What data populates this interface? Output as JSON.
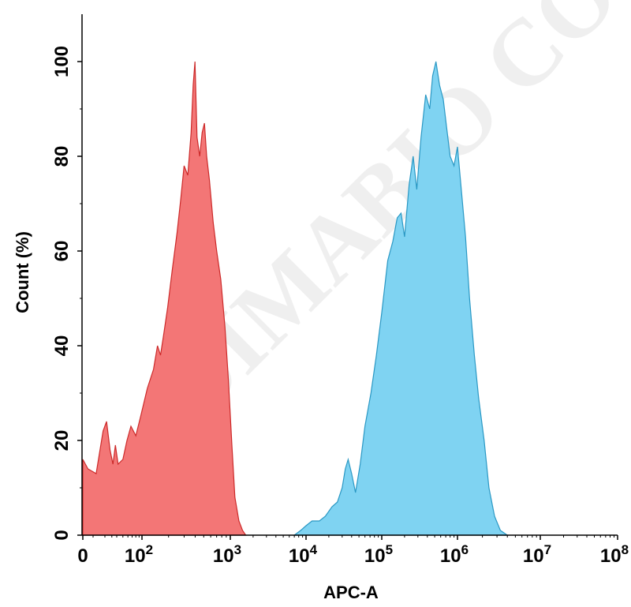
{
  "watermark": "DIMABIO CO",
  "chart_data": {
    "type": "area",
    "xlabel": "APC-A",
    "ylabel": "Count (%)",
    "x_scale": "biexponential",
    "xlim": [
      0,
      100000000
    ],
    "ylim": [
      0,
      110
    ],
    "x_ticks": [
      {
        "value": 0,
        "base": "0",
        "exp": ""
      },
      {
        "value": 100,
        "base": "10",
        "exp": "2"
      },
      {
        "value": 1000,
        "base": "10",
        "exp": "3"
      },
      {
        "value": 10000,
        "base": "10",
        "exp": "4"
      },
      {
        "value": 100000,
        "base": "10",
        "exp": "5"
      },
      {
        "value": 1000000,
        "base": "10",
        "exp": "6"
      },
      {
        "value": 10000000,
        "base": "10",
        "exp": "7"
      },
      {
        "value": 100000000,
        "base": "10",
        "exp": "8"
      }
    ],
    "y_ticks": [
      0,
      20,
      40,
      60,
      80,
      100
    ],
    "grid": false,
    "legend": "none",
    "series": [
      {
        "color": "#f37676",
        "stroke": "#cc2a2a",
        "points": [
          [
            0,
            16
          ],
          [
            5,
            14
          ],
          [
            12,
            13
          ],
          [
            18,
            22
          ],
          [
            22,
            24
          ],
          [
            27,
            18
          ],
          [
            32,
            15
          ],
          [
            37,
            19
          ],
          [
            42,
            15
          ],
          [
            50,
            16
          ],
          [
            58,
            20
          ],
          [
            67,
            23
          ],
          [
            80,
            21
          ],
          [
            95,
            25
          ],
          [
            115,
            31
          ],
          [
            135,
            35
          ],
          [
            150,
            40
          ],
          [
            162,
            38
          ],
          [
            175,
            42
          ],
          [
            195,
            48
          ],
          [
            220,
            56
          ],
          [
            250,
            64
          ],
          [
            275,
            71
          ],
          [
            300,
            78
          ],
          [
            330,
            76
          ],
          [
            360,
            85
          ],
          [
            380,
            95
          ],
          [
            398,
            100
          ],
          [
            420,
            84
          ],
          [
            450,
            80
          ],
          [
            480,
            85
          ],
          [
            510,
            87
          ],
          [
            540,
            80
          ],
          [
            580,
            75
          ],
          [
            640,
            66
          ],
          [
            700,
            60
          ],
          [
            780,
            54
          ],
          [
            870,
            44
          ],
          [
            950,
            33
          ],
          [
            1050,
            19
          ],
          [
            1150,
            8
          ],
          [
            1300,
            3
          ],
          [
            1450,
            1
          ],
          [
            1600,
            0
          ]
        ]
      },
      {
        "color": "#7fd3f2",
        "stroke": "#2a98c4",
        "points": [
          [
            7000,
            0
          ],
          [
            8500,
            1
          ],
          [
            10000,
            2
          ],
          [
            12000,
            3
          ],
          [
            15000,
            3
          ],
          [
            18000,
            4
          ],
          [
            22000,
            6
          ],
          [
            26000,
            7
          ],
          [
            30000,
            10
          ],
          [
            33000,
            14
          ],
          [
            36000,
            16
          ],
          [
            40000,
            13
          ],
          [
            45000,
            9
          ],
          [
            52000,
            15
          ],
          [
            60000,
            23
          ],
          [
            72000,
            30
          ],
          [
            85000,
            38
          ],
          [
            100000,
            47
          ],
          [
            120000,
            58
          ],
          [
            140000,
            62
          ],
          [
            160000,
            67
          ],
          [
            180000,
            68
          ],
          [
            200000,
            63
          ],
          [
            230000,
            74
          ],
          [
            260000,
            80
          ],
          [
            290000,
            73
          ],
          [
            330000,
            84
          ],
          [
            380000,
            93
          ],
          [
            430000,
            90
          ],
          [
            470000,
            97
          ],
          [
            520000,
            100
          ],
          [
            580000,
            95
          ],
          [
            650000,
            92
          ],
          [
            720000,
            86
          ],
          [
            800000,
            80
          ],
          [
            900000,
            78
          ],
          [
            1000000,
            82
          ],
          [
            1100000,
            74
          ],
          [
            1250000,
            63
          ],
          [
            1400000,
            50
          ],
          [
            1600000,
            38
          ],
          [
            1800000,
            29
          ],
          [
            2100000,
            20
          ],
          [
            2400000,
            10
          ],
          [
            2800000,
            4
          ],
          [
            3300000,
            1
          ],
          [
            4000000,
            0
          ]
        ]
      }
    ]
  }
}
